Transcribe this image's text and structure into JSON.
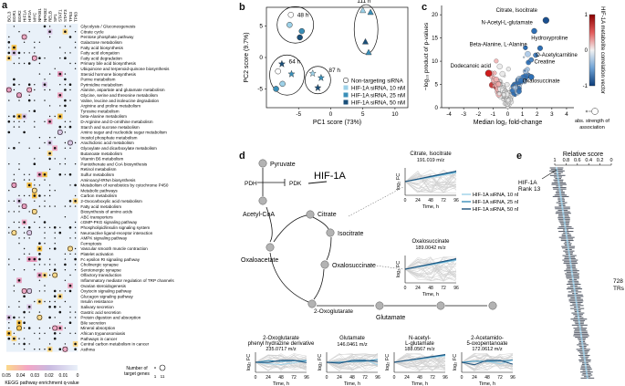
{
  "panels": {
    "a": "a",
    "b": "b",
    "c": "c",
    "d": "d",
    "e": "e"
  },
  "panel_a": {
    "tfs": [
      "BCL3",
      "EGR1",
      "EGR2",
      "HIF1A",
      "HIF2A",
      "MYC",
      "NFKB1",
      "NFKB2",
      "RELB",
      "SP1",
      "STAT1",
      "STAT3",
      "TP53",
      "TP63"
    ],
    "pathways": [
      "Glycolysis / Gluconeogenesis",
      "Citrate cycle",
      "Pentose phosphate pathway",
      "Galactose metabolism",
      "Fatty acid biosynthesis",
      "Fatty acid elongation",
      "Fatty acid degradation",
      "Primary bile acid biosynthesis",
      "Ubiquinone and terpenoid-quinone biosynthesis",
      "Steroid hormone biosynthesis",
      "Purine metabolism",
      "Pyrimidine metabolism",
      "Alanine, aspartate and glutamate metabolism",
      "Glycine, serine and threonine metabolism",
      "Valine, leucine and isoleucine degradation",
      "Arginine and proline metabolism",
      "Tyrosine metabolism",
      "beta-Alanine metabolism",
      "D-Arginine and D-ornithine metabolism",
      "Starch and sucrose metabolism",
      "Amino sugar and nucleotide sugar metabolism",
      "Inositol phosphate metabolism",
      "Arachidonic acid metabolism",
      "Glyoxylate and dicarboxylate metabolism",
      "Butanoate metabolism",
      "Vitamin B6 metabolism",
      "Pantothenate and CoA biosynthesis",
      "Retinol metabolism",
      "Sulfur metabolism",
      "Aminoacyl-tRNA biosynthesis",
      "Metabolism of xenobiotics by cytochrome P450",
      "Metabolic pathways",
      "Carbon metabolism",
      "2-Oxocarboxylic acid metabolism",
      "Fatty acid metabolism",
      "Biosynthesis of amino acids",
      "ABC transporters",
      "cGMP-PKG signaling pathway",
      "Phospholipid/insulin signaling system",
      "Neuroactive ligand-receptor interaction",
      "AMPK signaling pathway",
      "Ferroptosis",
      "Vascular smooth muscle contraction",
      "Platelet activation",
      "Fc epsilon RI signaling pathway",
      "Cholinergic synapse",
      "Serotonergic synapse",
      "Olfactory transduction",
      "Inflammatory mediator regulation of TRP channels",
      "Ovarian steroidogenesis",
      "Oxytocin signaling pathway",
      "Glucagon signaling pathway",
      "Insulin resistance",
      "Salivary secretion",
      "Gastric acid secretion",
      "Protein digestion and absorption",
      "Bile secretion",
      "Mineral absorption",
      "African trypanosomiasis",
      "Pathways in cancer",
      "Central carbon metabolism in cancer",
      "Asthma"
    ],
    "colorbar_ticks": [
      "0.05",
      "0.04",
      "0.03",
      "0.02",
      "0.01",
      "0"
    ],
    "colorbar_label": "KEGG pathway enrichment q-value",
    "size_legend_title": "Number of\ntarget genes",
    "size_legend_values": [
      "1",
      "11"
    ]
  },
  "panel_b": {
    "xlabel": "PC1 score (73%)",
    "ylabel": "PC2 score (9.7%)",
    "xticks": [
      "-5",
      "0",
      "5",
      "10"
    ],
    "yticks": [
      "-5",
      "0",
      "5"
    ],
    "time_labels": [
      "48 h",
      "111 h",
      "64 h",
      "87 h"
    ],
    "legend": [
      "Non-targeting siRNA",
      "HIF-1A siRNA, 10 nM",
      "HIF-1A siRNA, 25 nM",
      "HIF-1A siRNA, 50 nM"
    ],
    "colors": {
      "nt": "#ffffff",
      "nm10": "#9dd1e8",
      "nm25": "#3a8fb8",
      "nm50": "#1a4f7a"
    }
  },
  "panel_c": {
    "xlabel": "Median log₂ fold-change",
    "ylabel": "−log₁₀ product of p-values",
    "xticks": [
      "-4",
      "-3",
      "-2",
      "-1",
      "0",
      "1",
      "2",
      "3",
      "4"
    ],
    "yticks": [
      "0",
      "5",
      "10",
      "15",
      "20"
    ],
    "annotations": [
      "Citrate, Isocitrate",
      "N-Acetyl-L-glutamate",
      "Hydroxyproline",
      "Beta-Alanine, L-Alanine",
      "O-Acetylcarnitine",
      "Creatine",
      "Dodecanoic acid",
      "Oxalosuccinate"
    ],
    "colorbar_ticks": [
      "1",
      "0",
      "-1"
    ],
    "colorbar_label": "HIF-1A metabolite correlation vector",
    "size_legend": "abs. strength of association"
  },
  "panel_d": {
    "nodes": [
      "HIF-1A",
      "Pyruvate",
      "PDH",
      "PDK",
      "Acetyl-CoA",
      "Citrate",
      "Oxaloacetate",
      "Isocitrate",
      "Oxalosuccinate",
      "2-Oxoglutarate",
      "Glutamate",
      "N-acetyl-L-glutamate",
      "2-Acetamido-5-oxopentanoate"
    ],
    "legend": [
      "HIF-1A siRNA, 10 nM",
      "HIF-1A siRNA, 25 nM",
      "HIF-1A siRNA, 50 nM"
    ],
    "mini_plots": [
      {
        "title": "Citrate, Isocitrate",
        "mz": "191.019 m/z"
      },
      {
        "title": "Oxalosuccinate",
        "mz": "189.0042 m/z"
      },
      {
        "title": "2-Oxoglutarate\nphenyl hydrazine derivative",
        "mz": "235.0717 m/z"
      },
      {
        "title": "Glutamate",
        "mz": "146.0461 m/z"
      },
      {
        "title": "N-acetyl-\nL-glutamate",
        "mz": "188.0567 m/z"
      },
      {
        "title": "2-Acetamido-\n5-oxopentanoate",
        "mz": "172.0612 m/z"
      }
    ],
    "xticks": [
      "0",
      "24",
      "48",
      "72",
      "96"
    ],
    "xlabel": "Time, h",
    "ylabel": "log₂ FC"
  },
  "panel_e": {
    "title": "Relative score",
    "ticks": [
      "1",
      "0.8",
      "0.6",
      "0.4",
      "0.2",
      "0"
    ],
    "annot_name": "HIF-1A",
    "annot_rank": "Rank 13",
    "count_label": "728\nTRs"
  }
}
